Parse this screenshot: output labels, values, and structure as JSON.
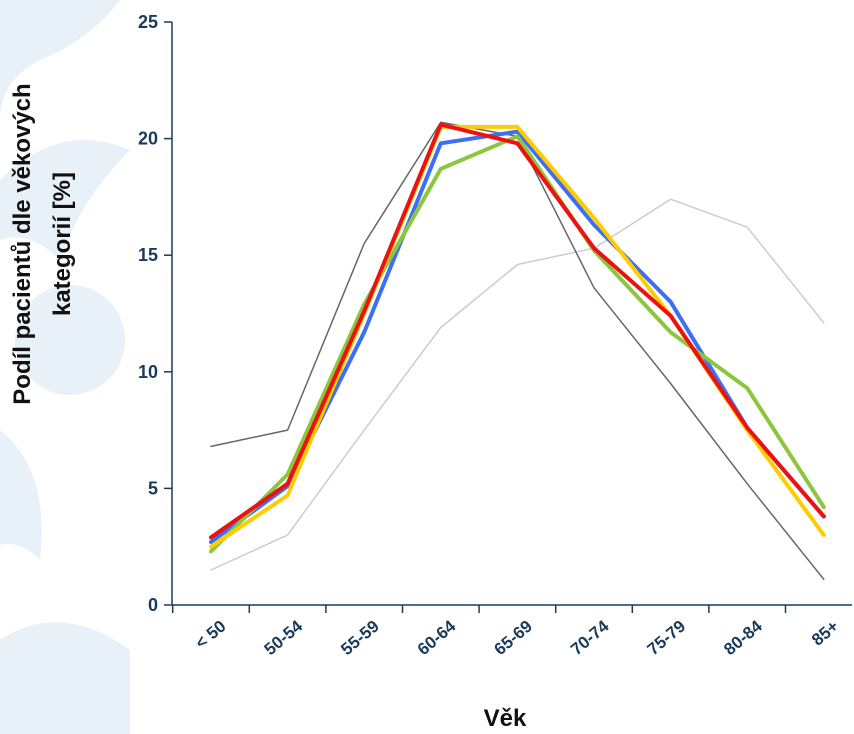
{
  "chart_data": {
    "type": "line",
    "title": "",
    "xlabel": "Věk",
    "ylabel_lines": [
      "Podíl pacientů dle věkových",
      "kategorií [%]"
    ],
    "categories": [
      "< 50",
      "50-54",
      "55-59",
      "60-64",
      "65-69",
      "70-74",
      "75-79",
      "80-84",
      "85+"
    ],
    "ylim": [
      0,
      25
    ],
    "yticks": [
      "0",
      "5",
      "10",
      "15",
      "20",
      "25"
    ],
    "grid": false,
    "legend": "none",
    "series": [
      {
        "color": "#cccccc",
        "width": 1.5,
        "values": [
          1.5,
          3.0,
          7.5,
          11.9,
          14.6,
          15.3,
          17.4,
          16.2,
          12.1
        ]
      },
      {
        "color": "#666666",
        "width": 1.5,
        "values": [
          6.8,
          7.5,
          15.5,
          20.7,
          20.1,
          13.6,
          9.5,
          5.2,
          1.1
        ]
      },
      {
        "color": "#3d6ff5",
        "width": 4,
        "values": [
          2.7,
          5.1,
          11.7,
          19.8,
          20.3,
          16.3,
          13.0,
          7.6,
          3.8
        ]
      },
      {
        "color": "#8cc63e",
        "width": 4,
        "values": [
          2.3,
          5.6,
          12.9,
          18.7,
          20.1,
          15.2,
          11.7,
          9.3,
          4.2
        ]
      },
      {
        "color": "#ffcc00",
        "width": 4,
        "values": [
          2.5,
          4.7,
          12.5,
          20.5,
          20.5,
          16.6,
          12.4,
          7.5,
          3.0
        ]
      },
      {
        "color": "#ee1111",
        "width": 4,
        "values": [
          2.9,
          5.2,
          12.6,
          20.6,
          19.8,
          15.3,
          12.4,
          7.6,
          3.8
        ]
      }
    ],
    "background_decoration": "pale-blue-swirl"
  }
}
